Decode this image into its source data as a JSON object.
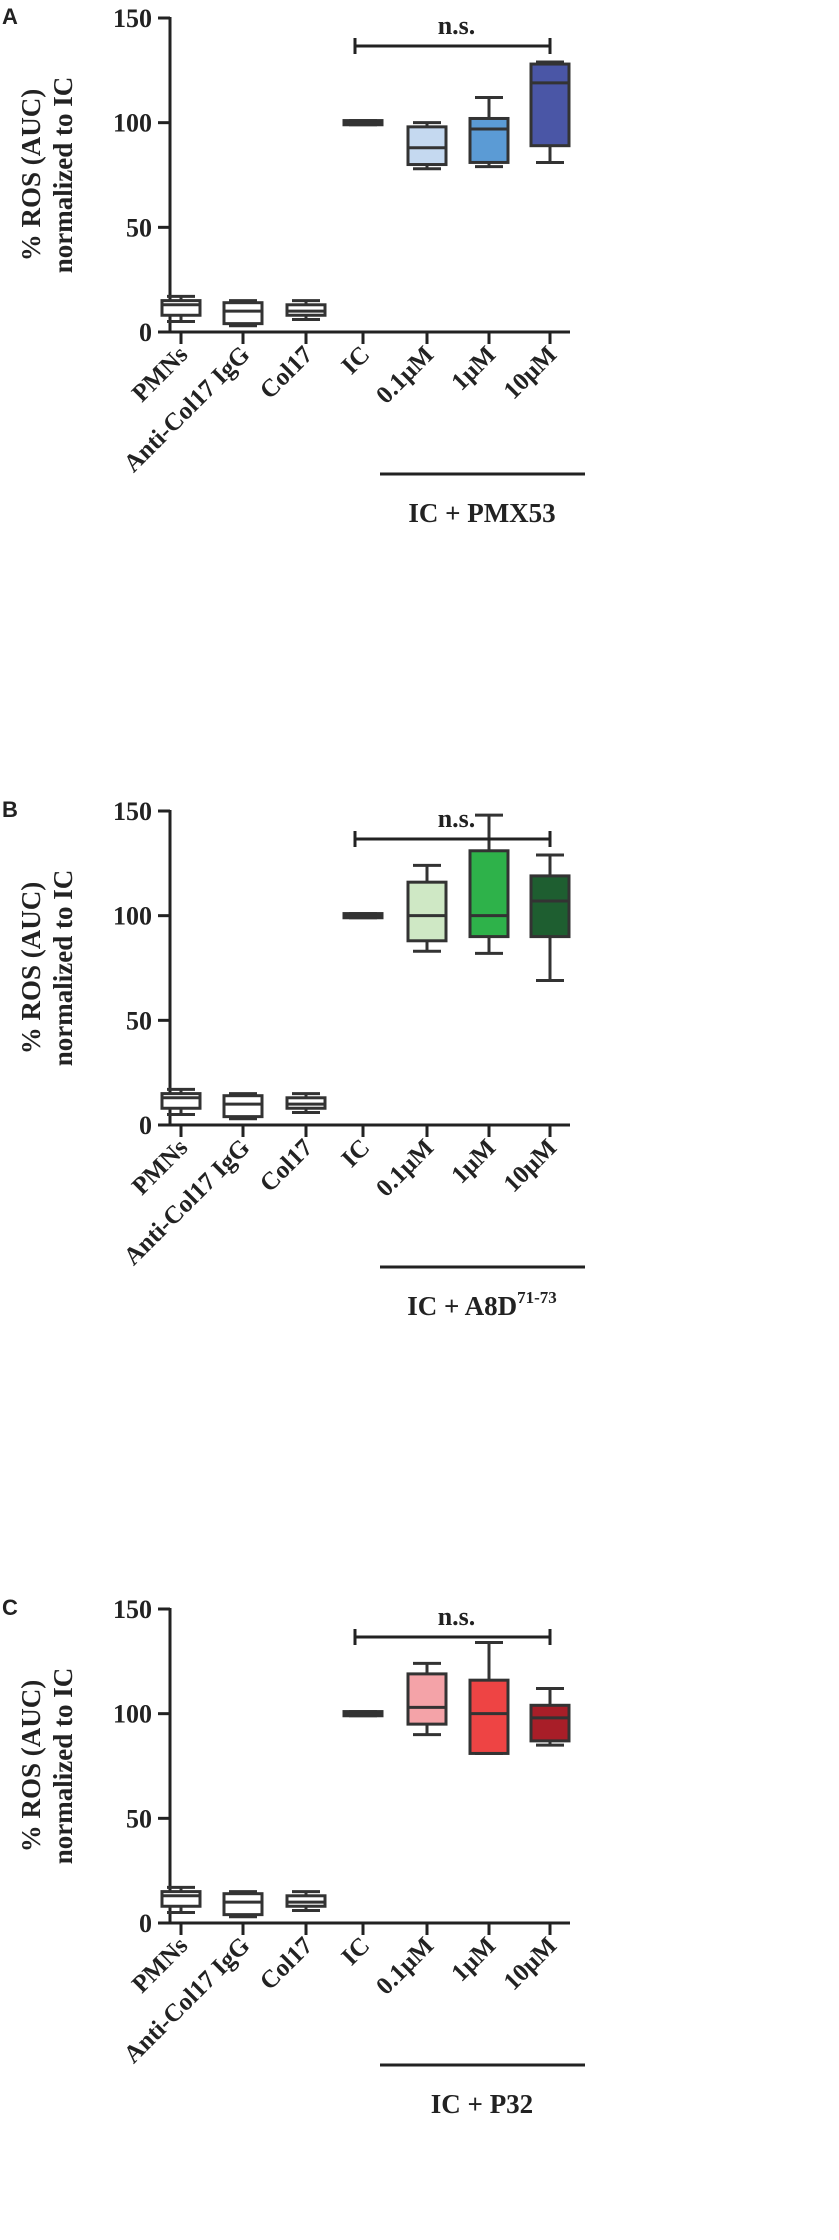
{
  "chart_data": [
    {
      "type": "box",
      "panel": "A",
      "ylabel_line1": "% ROS (AUC)",
      "ylabel_line2": "normalized to IC",
      "ylim": [
        0,
        150
      ],
      "yticks": [
        "0",
        "50",
        "100",
        "150"
      ],
      "categories": [
        "PMNs",
        "Anti-Col17 IgG",
        "Col17",
        "IC",
        "0.1µM",
        "1µM",
        "10µM"
      ],
      "group_label": "IC + PMX53",
      "group_sup": "",
      "significance": "n.s.",
      "boxes": [
        {
          "min": 5,
          "q1": 8,
          "median": 13,
          "q3": 15,
          "max": 17,
          "color": "#ffffff"
        },
        {
          "min": 3,
          "q1": 4,
          "median": 10,
          "q3": 14,
          "max": 15,
          "color": "#ffffff"
        },
        {
          "min": 6,
          "q1": 8,
          "median": 10,
          "q3": 13,
          "max": 15,
          "color": "#ffffff"
        },
        {
          "min": 99,
          "q1": 99,
          "median": 100,
          "q3": 101,
          "max": 101,
          "color": "#ffffff"
        },
        {
          "min": 78,
          "q1": 80,
          "median": 88,
          "q3": 98,
          "max": 100,
          "color": "#c5d9f0"
        },
        {
          "min": 79,
          "q1": 81,
          "median": 97,
          "q3": 102,
          "max": 112,
          "color": "#5b9bd5"
        },
        {
          "min": 81,
          "q1": 89,
          "median": 119,
          "q3": 128,
          "max": 129,
          "color": "#4a56a6"
        }
      ]
    },
    {
      "type": "box",
      "panel": "B",
      "ylabel_line1": "% ROS (AUC)",
      "ylabel_line2": "normalized to IC",
      "ylim": [
        0,
        150
      ],
      "yticks": [
        "0",
        "50",
        "100",
        "150"
      ],
      "categories": [
        "PMNs",
        "Anti-Col17 IgG",
        "Col17",
        "IC",
        "0.1µM",
        "1µM",
        "10µM"
      ],
      "group_label": "IC + A8D",
      "group_sup": "71-73",
      "significance": "n.s.",
      "boxes": [
        {
          "min": 5,
          "q1": 8,
          "median": 13,
          "q3": 15,
          "max": 17,
          "color": "#ffffff"
        },
        {
          "min": 3,
          "q1": 4,
          "median": 10,
          "q3": 14,
          "max": 15,
          "color": "#ffffff"
        },
        {
          "min": 6,
          "q1": 8,
          "median": 10,
          "q3": 13,
          "max": 15,
          "color": "#ffffff"
        },
        {
          "min": 99,
          "q1": 99,
          "median": 100,
          "q3": 101,
          "max": 101,
          "color": "#ffffff"
        },
        {
          "min": 83,
          "q1": 88,
          "median": 100,
          "q3": 116,
          "max": 124,
          "color": "#cfe8c5"
        },
        {
          "min": 82,
          "q1": 90,
          "median": 100,
          "q3": 131,
          "max": 148,
          "color": "#2eb24a"
        },
        {
          "min": 69,
          "q1": 90,
          "median": 107,
          "q3": 119,
          "max": 129,
          "color": "#1e5e30"
        }
      ]
    },
    {
      "type": "box",
      "panel": "C",
      "ylabel_line1": "% ROS (AUC)",
      "ylabel_line2": "normalized to IC",
      "ylim": [
        0,
        150
      ],
      "yticks": [
        "0",
        "50",
        "100",
        "150"
      ],
      "categories": [
        "PMNs",
        "Anti-Col17 IgG",
        "Col17",
        "IC",
        "0.1µM",
        "1µM",
        "10µM"
      ],
      "group_label": "IC + P32",
      "group_sup": "",
      "significance": "n.s.",
      "boxes": [
        {
          "min": 5,
          "q1": 8,
          "median": 13,
          "q3": 15,
          "max": 17,
          "color": "#ffffff"
        },
        {
          "min": 3,
          "q1": 4,
          "median": 10,
          "q3": 14,
          "max": 15,
          "color": "#ffffff"
        },
        {
          "min": 6,
          "q1": 8,
          "median": 10,
          "q3": 13,
          "max": 15,
          "color": "#ffffff"
        },
        {
          "min": 99,
          "q1": 99,
          "median": 100,
          "q3": 101,
          "max": 101,
          "color": "#ffffff"
        },
        {
          "min": 90,
          "q1": 95,
          "median": 103,
          "q3": 119,
          "max": 124,
          "color": "#f4a3a8"
        },
        {
          "min": 81,
          "q1": 81,
          "median": 100,
          "q3": 116,
          "max": 134,
          "color": "#ee4444"
        },
        {
          "min": 85,
          "q1": 87,
          "median": 98,
          "q3": 104,
          "max": 112,
          "color": "#a81e28"
        }
      ]
    }
  ]
}
